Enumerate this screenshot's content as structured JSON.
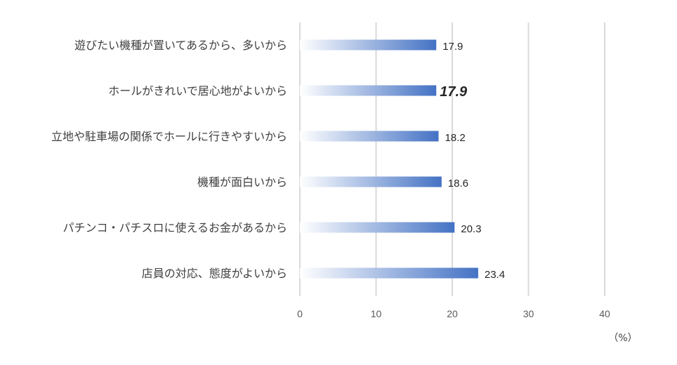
{
  "chart_data": {
    "type": "bar",
    "orientation": "horizontal",
    "categories": [
      "遊びたい機種が置いてあるから、多いから",
      "ホールがきれいで居心地がよいから",
      "立地や駐車場の関係でホールに行きやすいから",
      "機種が面白いから",
      "パチンコ・パチスロに使えるお金があるから",
      "店員の対応、態度がよいから"
    ],
    "values": [
      17.9,
      17.9,
      18.2,
      18.6,
      20.3,
      23.4
    ],
    "value_labels": [
      "17.9",
      "17.9",
      "18.2",
      "18.6",
      "20.3",
      "23.4"
    ],
    "highlight_index": 1,
    "highlight_color": "#ff0000",
    "bar_color": "#4472c4",
    "bar_gradient_start": "#ffffff",
    "xlim": [
      0,
      40
    ],
    "xticks": [
      0,
      10,
      20,
      30,
      40
    ],
    "xtick_labels": [
      "0",
      "10",
      "20",
      "30",
      "40"
    ],
    "unit_label": "（%）",
    "grid": true
  }
}
